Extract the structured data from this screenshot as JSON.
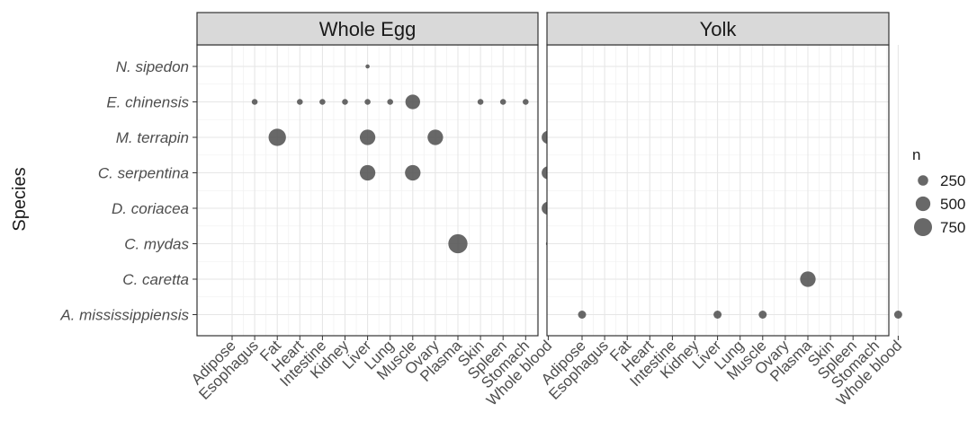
{
  "chart_data": {
    "type": "scatter",
    "title": "",
    "ylabel": "Species",
    "xlabel": "",
    "size_variable": "n",
    "facets": [
      "Whole Egg",
      "Yolk"
    ],
    "categories_x": [
      "Adipose",
      "Esophagus",
      "Fat",
      "Heart",
      "Intestine",
      "Kidney",
      "Liver",
      "Lung",
      "Muscle",
      "Ovary",
      "Plasma",
      "Skin",
      "Spleen",
      "Stomach",
      "Whole blood"
    ],
    "categories_y": [
      "A. mississippiensis",
      "C. caretta",
      "C. mydas",
      "D. coriacea",
      "C. serpentina",
      "M. terrapin",
      "E. chinensis",
      "N. sipedon"
    ],
    "legend": {
      "title": "n",
      "position": "right",
      "entries": [
        {
          "label": "250",
          "value": 250
        },
        {
          "label": "500",
          "value": 500
        },
        {
          "label": "750",
          "value": 750
        }
      ]
    },
    "point_color": "#4d4d4d",
    "panel_strip_color": "#d9d9d9",
    "grid": true,
    "points": [
      {
        "facet": "Whole Egg",
        "x": "Liver",
        "y": "N. sipedon",
        "n": 40
      },
      {
        "facet": "Whole Egg",
        "x": "Esophagus",
        "y": "E. chinensis",
        "n": 80
      },
      {
        "facet": "Whole Egg",
        "x": "Heart",
        "y": "E. chinensis",
        "n": 80
      },
      {
        "facet": "Whole Egg",
        "x": "Intestine",
        "y": "E. chinensis",
        "n": 80
      },
      {
        "facet": "Whole Egg",
        "x": "Kidney",
        "y": "E. chinensis",
        "n": 80
      },
      {
        "facet": "Whole Egg",
        "x": "Liver",
        "y": "E. chinensis",
        "n": 80
      },
      {
        "facet": "Whole Egg",
        "x": "Lung",
        "y": "E. chinensis",
        "n": 80
      },
      {
        "facet": "Whole Egg",
        "x": "Muscle",
        "y": "E. chinensis",
        "n": 500
      },
      {
        "facet": "Whole Egg",
        "x": "Skin",
        "y": "E. chinensis",
        "n": 80
      },
      {
        "facet": "Whole Egg",
        "x": "Spleen",
        "y": "E. chinensis",
        "n": 80
      },
      {
        "facet": "Whole Egg",
        "x": "Stomach",
        "y": "E. chinensis",
        "n": 80
      },
      {
        "facet": "Whole Egg",
        "x": "Fat",
        "y": "M. terrapin",
        "n": 700
      },
      {
        "facet": "Whole Egg",
        "x": "Liver",
        "y": "M. terrapin",
        "n": 560
      },
      {
        "facet": "Whole Egg",
        "x": "Ovary",
        "y": "M. terrapin",
        "n": 560
      },
      {
        "facet": "Whole Egg",
        "x": "Whole blood",
        "y": "M. terrapin",
        "n": 400
      },
      {
        "facet": "Whole Egg",
        "x": "Liver",
        "y": "C. serpentina",
        "n": 560
      },
      {
        "facet": "Whole Egg",
        "x": "Muscle",
        "y": "C. serpentina",
        "n": 560
      },
      {
        "facet": "Whole Egg",
        "x": "Whole blood",
        "y": "C. serpentina",
        "n": 400
      },
      {
        "facet": "Whole Egg",
        "x": "Whole blood",
        "y": "D. coriacea",
        "n": 400
      },
      {
        "facet": "Whole Egg",
        "x": "Plasma",
        "y": "C. mydas",
        "n": 850
      },
      {
        "facet": "Whole Egg",
        "x": "Whole blood",
        "y": "C. mydas",
        "n": 50
      },
      {
        "facet": "Yolk",
        "x": "Plasma",
        "y": "C. caretta",
        "n": 560
      },
      {
        "facet": "Yolk",
        "x": "Adipose",
        "y": "A. mississippiensis",
        "n": 150
      },
      {
        "facet": "Yolk",
        "x": "Liver",
        "y": "A. mississippiensis",
        "n": 150
      },
      {
        "facet": "Yolk",
        "x": "Muscle",
        "y": "A. mississippiensis",
        "n": 150
      },
      {
        "facet": "Yolk",
        "x": "Whole blood",
        "y": "A. mississippiensis",
        "n": 150
      }
    ]
  }
}
